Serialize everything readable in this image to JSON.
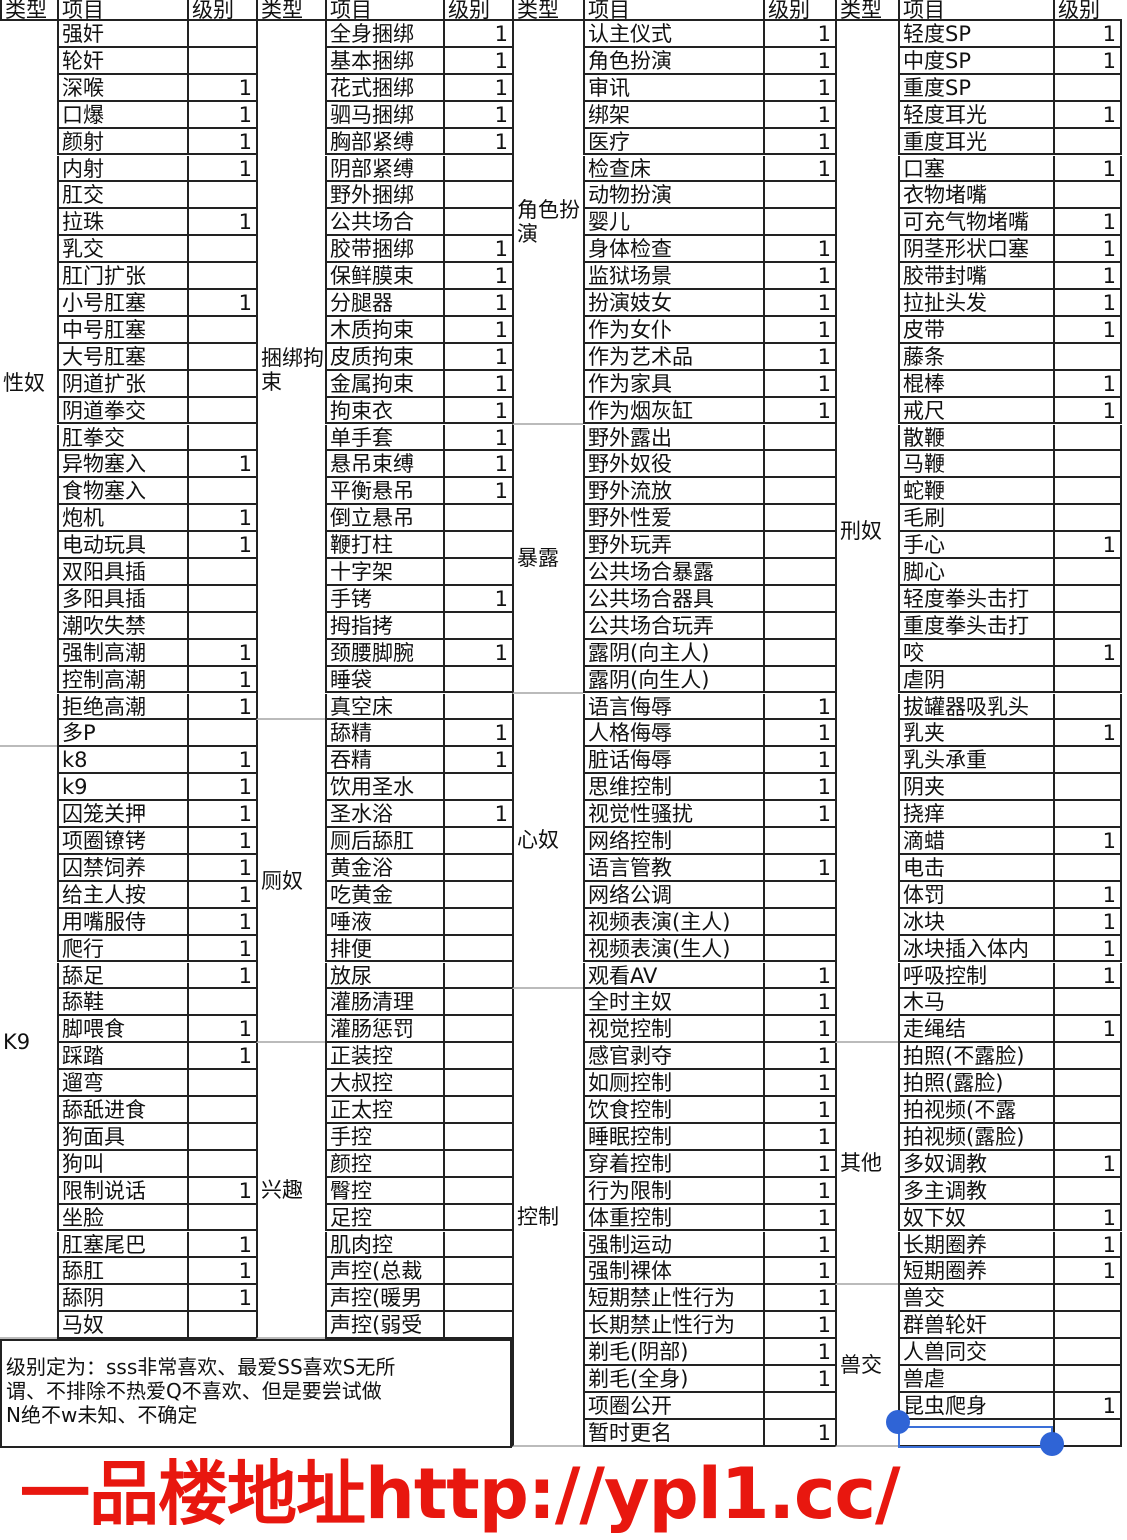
{
  "headers": [
    "类型",
    "项目",
    "级别"
  ],
  "groups": [
    {
      "sections": [
        {
          "type": "性奴",
          "items": [
            [
              "强奸",
              ""
            ],
            [
              "轮奸",
              ""
            ],
            [
              "深喉",
              "1"
            ],
            [
              "口爆",
              "1"
            ],
            [
              "颜射",
              "1"
            ],
            [
              "内射",
              "1"
            ],
            [
              "肛交",
              ""
            ],
            [
              "拉珠",
              "1"
            ],
            [
              "乳交",
              ""
            ],
            [
              "肛门扩张",
              ""
            ],
            [
              "小号肛塞",
              "1"
            ],
            [
              "中号肛塞",
              ""
            ],
            [
              "大号肛塞",
              ""
            ],
            [
              "阴道扩张",
              ""
            ],
            [
              "阴道拳交",
              ""
            ],
            [
              "肛拳交",
              ""
            ],
            [
              "异物塞入",
              "1"
            ],
            [
              "食物塞入",
              ""
            ],
            [
              "炮机",
              "1"
            ],
            [
              "电动玩具",
              "1"
            ],
            [
              "双阳具插",
              ""
            ],
            [
              "多阳具插",
              ""
            ],
            [
              "潮吹失禁",
              ""
            ],
            [
              "强制高潮",
              "1"
            ],
            [
              "控制高潮",
              "1"
            ],
            [
              "拒绝高潮",
              "1"
            ],
            [
              "多P",
              ""
            ]
          ]
        },
        {
          "type": "K9",
          "items": [
            [
              "k8",
              "1"
            ],
            [
              "k9",
              "1"
            ],
            [
              "囚笼关押",
              "1"
            ],
            [
              "项圈镣铐",
              "1"
            ],
            [
              "囚禁饲养",
              "1"
            ],
            [
              "给主人按",
              "1"
            ],
            [
              "用嘴服侍",
              "1"
            ],
            [
              "爬行",
              "1"
            ],
            [
              "舔足",
              "1"
            ],
            [
              "舔鞋",
              ""
            ],
            [
              "脚喂食",
              "1"
            ],
            [
              "踩踏",
              "1"
            ],
            [
              "遛弯",
              ""
            ],
            [
              "舔舐进食",
              ""
            ],
            [
              "狗面具",
              ""
            ],
            [
              "狗叫",
              ""
            ],
            [
              "限制说话",
              "1"
            ],
            [
              "坐脸",
              ""
            ],
            [
              "肛塞尾巴",
              "1"
            ],
            [
              "舔肛",
              "1"
            ],
            [
              "舔阴",
              "1"
            ],
            [
              "马奴",
              ""
            ]
          ]
        }
      ]
    },
    {
      "sections": [
        {
          "type": "捆绑拘束",
          "items": [
            [
              "全身捆绑",
              "1"
            ],
            [
              "基本捆绑",
              "1"
            ],
            [
              "花式捆绑",
              "1"
            ],
            [
              "驷马捆绑",
              "1"
            ],
            [
              "胸部紧缚",
              "1"
            ],
            [
              "阴部紧缚",
              ""
            ],
            [
              "野外捆绑",
              ""
            ],
            [
              "公共场合",
              ""
            ],
            [
              "胶带捆绑",
              "1"
            ],
            [
              "保鲜膜束",
              "1"
            ],
            [
              "分腿器",
              "1"
            ],
            [
              "木质拘束",
              "1"
            ],
            [
              "皮质拘束",
              "1"
            ],
            [
              "金属拘束",
              "1"
            ],
            [
              "拘束衣",
              "1"
            ],
            [
              "单手套",
              "1"
            ],
            [
              "悬吊束缚",
              "1"
            ],
            [
              "平衡悬吊",
              "1"
            ],
            [
              "倒立悬吊",
              ""
            ],
            [
              "鞭打柱",
              ""
            ],
            [
              "十字架",
              ""
            ],
            [
              "手铐",
              "1"
            ],
            [
              "拇指拷",
              ""
            ],
            [
              "颈腰脚腕",
              "1"
            ],
            [
              "睡袋",
              ""
            ],
            [
              "真空床",
              ""
            ]
          ]
        },
        {
          "type": "厕奴",
          "items": [
            [
              "舔精",
              "1"
            ],
            [
              "吞精",
              "1"
            ],
            [
              "饮用圣水",
              ""
            ],
            [
              "圣水浴",
              "1"
            ],
            [
              "厕后舔肛",
              ""
            ],
            [
              "黄金浴",
              ""
            ],
            [
              "吃黄金",
              ""
            ],
            [
              "唾液",
              ""
            ],
            [
              "排便",
              ""
            ],
            [
              "放尿",
              ""
            ],
            [
              "灌肠清理",
              ""
            ],
            [
              "灌肠惩罚",
              ""
            ]
          ]
        },
        {
          "type": "兴趣",
          "items": [
            [
              "正装控",
              ""
            ],
            [
              "大叔控",
              ""
            ],
            [
              "正太控",
              ""
            ],
            [
              "手控",
              ""
            ],
            [
              "颜控",
              ""
            ],
            [
              "臀控",
              ""
            ],
            [
              "足控",
              ""
            ],
            [
              "肌肉控",
              ""
            ],
            [
              "声控(总裁",
              ""
            ],
            [
              "声控(暖男",
              ""
            ],
            [
              "声控(弱受",
              ""
            ]
          ]
        }
      ]
    },
    {
      "sections": [
        {
          "type": "角色扮演",
          "items": [
            [
              "认主仪式",
              "1"
            ],
            [
              "角色扮演",
              "1"
            ],
            [
              "审讯",
              "1"
            ],
            [
              "绑架",
              "1"
            ],
            [
              "医疗",
              "1"
            ],
            [
              "检查床",
              "1"
            ],
            [
              "动物扮演",
              ""
            ],
            [
              "婴儿",
              ""
            ],
            [
              "身体检查",
              "1"
            ],
            [
              "监狱场景",
              "1"
            ],
            [
              "扮演妓女",
              "1"
            ],
            [
              "作为女仆",
              "1"
            ],
            [
              "作为艺术品",
              "1"
            ],
            [
              "作为家具",
              "1"
            ],
            [
              "作为烟灰缸",
              "1"
            ]
          ]
        },
        {
          "type": "暴露",
          "items": [
            [
              "野外露出",
              ""
            ],
            [
              "野外奴役",
              ""
            ],
            [
              "野外流放",
              ""
            ],
            [
              "野外性爱",
              ""
            ],
            [
              "野外玩弄",
              ""
            ],
            [
              "公共场合暴露",
              ""
            ],
            [
              "公共场合器具",
              ""
            ],
            [
              "公共场合玩弄",
              ""
            ],
            [
              "露阴(向主人)",
              ""
            ],
            [
              "露阴(向生人)",
              ""
            ]
          ]
        },
        {
          "type": "心奴",
          "items": [
            [
              "语言侮辱",
              "1"
            ],
            [
              "人格侮辱",
              "1"
            ],
            [
              "脏话侮辱",
              "1"
            ],
            [
              "思维控制",
              "1"
            ],
            [
              "视觉性骚扰",
              "1"
            ],
            [
              "网络控制",
              ""
            ],
            [
              "语言管教",
              "1"
            ],
            [
              "网络公调",
              ""
            ],
            [
              "视频表演(主人)",
              ""
            ],
            [
              "视频表演(生人)",
              ""
            ],
            [
              "观看AV",
              "1"
            ]
          ]
        },
        {
          "type": "控制",
          "items": [
            [
              "全时主奴",
              "1"
            ],
            [
              "视觉控制",
              "1"
            ],
            [
              "感官剥夺",
              "1"
            ],
            [
              "如厕控制",
              "1"
            ],
            [
              "饮食控制",
              "1"
            ],
            [
              "睡眠控制",
              "1"
            ],
            [
              "穿着控制",
              "1"
            ],
            [
              "行为限制",
              "1"
            ],
            [
              "体重控制",
              "1"
            ],
            [
              "强制运动",
              "1"
            ],
            [
              "强制裸体",
              "1"
            ],
            [
              "短期禁止性行为",
              "1"
            ],
            [
              "长期禁止性行为",
              "1"
            ],
            [
              "剃毛(阴部)",
              "1"
            ],
            [
              "剃毛(全身)",
              "1"
            ],
            [
              "项圈公开",
              ""
            ],
            [
              "暂时更名",
              "1"
            ]
          ]
        }
      ]
    },
    {
      "sections": [
        {
          "type": "刑奴",
          "items": [
            [
              "轻度SP",
              "1"
            ],
            [
              "中度SP",
              "1"
            ],
            [
              "重度SP",
              ""
            ],
            [
              "轻度耳光",
              "1"
            ],
            [
              "重度耳光",
              ""
            ],
            [
              "口塞",
              "1"
            ],
            [
              "衣物堵嘴",
              ""
            ],
            [
              "可充气物堵嘴",
              "1"
            ],
            [
              "阴茎形状口塞",
              "1"
            ],
            [
              "胶带封嘴",
              "1"
            ],
            [
              "拉扯头发",
              "1"
            ],
            [
              "皮带",
              "1"
            ],
            [
              "藤条",
              ""
            ],
            [
              "棍棒",
              "1"
            ],
            [
              "戒尺",
              "1"
            ],
            [
              "散鞭",
              ""
            ],
            [
              "马鞭",
              ""
            ],
            [
              "蛇鞭",
              ""
            ],
            [
              "毛刷",
              ""
            ],
            [
              "手心",
              "1"
            ],
            [
              "脚心",
              ""
            ],
            [
              "轻度拳头击打",
              ""
            ],
            [
              "重度拳头击打",
              ""
            ],
            [
              "咬",
              "1"
            ],
            [
              "虐阴",
              ""
            ],
            [
              "拔罐器吸乳头",
              ""
            ],
            [
              "乳夹",
              "1"
            ],
            [
              "乳头承重",
              ""
            ],
            [
              "阴夹",
              ""
            ],
            [
              "挠痒",
              ""
            ],
            [
              "滴蜡",
              "1"
            ],
            [
              "电击",
              ""
            ],
            [
              "体罚",
              "1"
            ],
            [
              "冰块",
              "1"
            ],
            [
              "冰块插入体内",
              "1"
            ],
            [
              "呼吸控制",
              "1"
            ],
            [
              "木马",
              ""
            ],
            [
              "走绳结",
              "1"
            ]
          ]
        },
        {
          "type": "其他",
          "items": [
            [
              "拍照(不露脸)",
              ""
            ],
            [
              "拍照(露脸)",
              ""
            ],
            [
              "拍视频(不露",
              ""
            ],
            [
              "拍视频(露脸)",
              ""
            ],
            [
              "多奴调教",
              "1"
            ],
            [
              "多主调教",
              ""
            ],
            [
              "奴下奴",
              "1"
            ],
            [
              "长期圈养",
              "1"
            ],
            [
              "短期圈养",
              "1"
            ]
          ]
        },
        {
          "type": "兽交",
          "items": [
            [
              "兽交",
              ""
            ],
            [
              "群兽轮奸",
              ""
            ],
            [
              "人兽同交",
              ""
            ],
            [
              "兽虐",
              ""
            ],
            [
              "昆虫爬身",
              "1"
            ],
            [
              "",
              ""
            ]
          ]
        }
      ]
    }
  ],
  "note": "级别定为：sss非常喜欢、最爱SS喜欢S无所\n谓、不排除不热爱Q不喜欢、但是要尝试做\nN绝不w未知、不确定",
  "watermark": "一品楼地址http://ypl1.cc/",
  "colors": {
    "grid": "#222222",
    "watermark": "#e8170f",
    "selection": "#2f64d6"
  }
}
